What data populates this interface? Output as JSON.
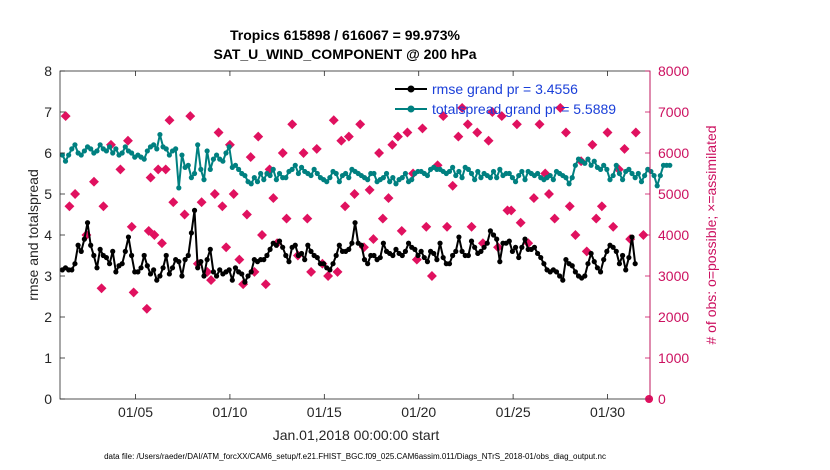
{
  "chart_data": {
    "type": "line",
    "title": "Tropics 615898 / 616067 = 99.973%",
    "subtitle": "SAT_U_WIND_COMPONENT @ 200 hPa",
    "xlabel": "Jan.01,2018 00:00:00 start",
    "ylabel_left": "rmse and totalspread",
    "ylabel_right": "# of obs: o=possible; ×=assimilated",
    "x_tick_labels": [
      "01/05",
      "01/10",
      "01/15",
      "01/20",
      "01/25",
      "01/30"
    ],
    "x_tick_days": [
      5,
      10,
      15,
      20,
      25,
      30
    ],
    "xlim": [
      1,
      32.25
    ],
    "ylim_left": [
      0,
      8
    ],
    "ylim_right": [
      0,
      8000
    ],
    "yticks_left": [
      "0",
      "1",
      "2",
      "3",
      "4",
      "5",
      "6",
      "7",
      "8"
    ],
    "yticks_right": [
      "0",
      "1000",
      "2000",
      "3000",
      "4000",
      "5000",
      "6000",
      "7000",
      "8000"
    ],
    "legend": [
      "rmse grand pr = 3.4556",
      "totalspread grand pr = 5.5889"
    ],
    "footnote": "data file: /Users/raeder/DAI/ATM_forcXX/CAM6_setup/f.e21.FHIST_BGC.f09_025.CAM6assim.011/Diags_NTrS_2018-01/obs_diag_output.nc",
    "colors": {
      "rmse": "#000000",
      "spread": "#008080",
      "obs": "#e0115f",
      "right_axis": "#cc1160"
    },
    "series": [
      {
        "name": "rmse",
        "values": [
          3.15,
          3.2,
          3.15,
          3.15,
          3.3,
          3.75,
          3.6,
          3.9,
          4.3,
          3.75,
          3.5,
          3.2,
          3.65,
          3.5,
          3.45,
          3.3,
          3.6,
          3.1,
          3.25,
          3.3,
          3.6,
          3.95,
          3.5,
          3.1,
          3.1,
          3.2,
          3.5,
          3.25,
          3.05,
          3.15,
          2.9,
          3.0,
          3.2,
          3.5,
          3.05,
          3.2,
          3.4,
          3.35,
          3.0,
          3.4,
          3.5,
          4.05,
          4.6,
          3.2,
          3.35,
          3.0,
          3.4,
          3.65,
          3.1,
          3.0,
          3.15,
          3.05,
          3.1,
          3.15,
          2.9,
          3.2,
          3.1,
          3.05,
          2.85,
          3.0,
          3.1,
          3.4,
          3.35,
          3.4,
          3.4,
          3.5,
          3.65,
          3.8,
          3.75,
          3.85,
          3.7,
          3.5,
          3.35,
          3.7,
          3.75,
          3.5,
          3.55,
          3.4,
          3.75,
          3.6,
          3.5,
          3.45,
          3.3,
          3.3,
          3.2,
          3.15,
          3.3,
          3.5,
          3.75,
          3.6,
          3.6,
          3.65,
          3.8,
          4.3,
          3.8,
          3.75,
          3.4,
          3.3,
          3.5,
          3.5,
          3.4,
          3.45,
          3.8,
          3.6,
          3.55,
          3.5,
          3.65,
          3.55,
          3.5,
          3.6,
          3.8,
          3.7,
          3.65,
          3.5,
          3.6,
          3.45,
          3.35,
          3.6,
          3.55,
          3.4,
          3.8,
          3.45,
          3.3,
          3.3,
          3.5,
          3.6,
          3.95,
          3.6,
          3.5,
          3.5,
          3.85,
          3.7,
          3.55,
          3.6,
          3.7,
          3.8,
          4.1,
          4.0,
          3.9,
          3.35,
          3.8,
          3.8,
          3.85,
          3.6,
          3.7,
          3.45,
          3.7,
          3.9,
          3.65,
          3.65,
          3.7,
          3.55,
          3.45,
          3.3,
          3.15,
          3.1,
          3.15,
          3.1,
          3.0,
          2.9,
          3.4,
          3.3,
          3.25,
          3.1,
          3.0,
          2.95,
          3.0,
          3.3,
          3.55,
          3.35,
          3.2,
          3.1,
          3.4,
          3.6,
          3.75,
          3.7,
          3.6,
          3.3,
          3.5,
          3.15,
          3.45,
          3.95,
          3.3
        ]
      },
      {
        "name": "totalspread",
        "values": [
          5.95,
          5.8,
          5.95,
          6.1,
          6.2,
          6.0,
          5.95,
          6.05,
          6.15,
          6.1,
          6.0,
          6.05,
          6.2,
          6.1,
          6.05,
          6.15,
          6.0,
          6.1,
          5.95,
          6.0,
          6.15,
          6.05,
          6.0,
          5.9,
          5.95,
          5.9,
          5.85,
          6.05,
          6.15,
          6.2,
          6.1,
          6.45,
          6.15,
          6.1,
          5.95,
          6.05,
          6.1,
          5.15,
          5.95,
          5.65,
          5.7,
          5.4,
          5.5,
          6.2,
          5.6,
          5.35,
          6.05,
          5.6,
          5.85,
          5.95,
          5.85,
          5.8,
          6.0,
          6.15,
          5.65,
          5.7,
          5.6,
          5.5,
          5.45,
          5.3,
          5.25,
          5.4,
          5.3,
          5.5,
          5.35,
          5.5,
          5.45,
          5.6,
          5.35,
          5.5,
          5.4,
          5.4,
          5.55,
          5.6,
          5.7,
          5.5,
          5.65,
          5.55,
          5.5,
          5.45,
          5.6,
          5.5,
          5.4,
          5.35,
          5.3,
          5.4,
          5.55,
          5.5,
          5.3,
          5.45,
          5.5,
          5.4,
          5.6,
          5.55,
          5.5,
          5.45,
          5.4,
          5.35,
          5.5,
          5.5,
          5.3,
          5.35,
          5.4,
          5.5,
          5.3,
          5.4,
          5.25,
          5.35,
          5.4,
          5.5,
          5.3,
          5.35,
          5.5,
          5.55,
          5.55,
          5.5,
          5.45,
          5.6,
          5.65,
          5.6,
          5.6,
          5.55,
          5.5,
          5.55,
          5.65,
          5.45,
          5.55,
          5.4,
          5.65,
          5.6,
          5.5,
          5.35,
          5.55,
          5.4,
          5.5,
          5.45,
          5.4,
          5.55,
          5.4,
          5.6,
          5.45,
          5.5,
          5.5,
          5.4,
          5.3,
          5.45,
          5.55,
          5.35,
          5.55,
          5.5,
          5.45,
          5.5,
          5.4,
          5.35,
          5.4,
          5.45,
          5.35,
          5.55,
          5.5,
          5.45,
          5.4,
          5.25,
          5.4,
          5.7,
          5.85,
          5.8,
          5.75,
          5.85,
          5.7,
          5.8,
          5.65,
          5.6,
          5.7,
          5.6,
          5.35,
          5.45,
          5.7,
          5.5,
          5.35,
          5.55,
          5.6,
          5.5,
          5.4,
          5.5,
          5.3,
          5.45,
          5.6,
          5.55,
          5.45,
          5.2,
          5.45,
          5.7,
          5.7,
          5.7
        ]
      },
      {
        "name": "obs_assimilated",
        "points": [
          [
            1.3,
            6900
          ],
          [
            1.5,
            4700
          ],
          [
            1.8,
            5000
          ],
          [
            2.4,
            4000
          ],
          [
            2.8,
            5300
          ],
          [
            3.2,
            2700
          ],
          [
            3.3,
            4700
          ],
          [
            3.7,
            6200
          ],
          [
            4.2,
            5600
          ],
          [
            4.6,
            6300
          ],
          [
            4.8,
            4200
          ],
          [
            4.9,
            2600
          ],
          [
            5.6,
            2200
          ],
          [
            5.7,
            4100
          ],
          [
            5.8,
            5400
          ],
          [
            6.0,
            4000
          ],
          [
            6.2,
            5600
          ],
          [
            6.4,
            3800
          ],
          [
            6.6,
            5600
          ],
          [
            6.8,
            6800
          ],
          [
            7.0,
            4800
          ],
          [
            7.6,
            4500
          ],
          [
            7.9,
            6900
          ],
          [
            8.3,
            3300
          ],
          [
            8.5,
            4800
          ],
          [
            8.8,
            3100
          ],
          [
            9.0,
            2900
          ],
          [
            9.2,
            5000
          ],
          [
            9.4,
            6500
          ],
          [
            9.6,
            4700
          ],
          [
            9.8,
            3700
          ],
          [
            10.0,
            6200
          ],
          [
            10.2,
            5000
          ],
          [
            10.5,
            3400
          ],
          [
            10.7,
            2800
          ],
          [
            10.9,
            4500
          ],
          [
            11.1,
            5900
          ],
          [
            11.3,
            3100
          ],
          [
            11.5,
            6400
          ],
          [
            11.7,
            4000
          ],
          [
            11.9,
            2800
          ],
          [
            12.1,
            5600
          ],
          [
            12.3,
            4900
          ],
          [
            12.5,
            3800
          ],
          [
            12.8,
            6000
          ],
          [
            13.0,
            4400
          ],
          [
            13.3,
            6700
          ],
          [
            13.6,
            3500
          ],
          [
            13.9,
            6000
          ],
          [
            14.1,
            4400
          ],
          [
            14.3,
            3100
          ],
          [
            14.6,
            6100
          ],
          [
            14.9,
            3300
          ],
          [
            15.2,
            3000
          ],
          [
            15.5,
            6800
          ],
          [
            15.7,
            3100
          ],
          [
            15.9,
            6300
          ],
          [
            16.1,
            4700
          ],
          [
            16.3,
            6400
          ],
          [
            16.6,
            5000
          ],
          [
            16.9,
            6700
          ],
          [
            17.1,
            3700
          ],
          [
            17.4,
            5100
          ],
          [
            17.6,
            3900
          ],
          [
            17.9,
            6000
          ],
          [
            18.1,
            4400
          ],
          [
            18.4,
            4900
          ],
          [
            18.6,
            6200
          ],
          [
            18.9,
            6400
          ],
          [
            19.1,
            4100
          ],
          [
            19.4,
            6500
          ],
          [
            19.7,
            5500
          ],
          [
            19.9,
            3400
          ],
          [
            20.2,
            6600
          ],
          [
            20.4,
            4200
          ],
          [
            20.7,
            3000
          ],
          [
            21.0,
            5700
          ],
          [
            21.3,
            6900
          ],
          [
            21.5,
            4200
          ],
          [
            21.8,
            5200
          ],
          [
            22.1,
            6400
          ],
          [
            22.3,
            7100
          ],
          [
            22.6,
            6700
          ],
          [
            22.8,
            4200
          ],
          [
            23.1,
            6500
          ],
          [
            23.4,
            3800
          ],
          [
            23.7,
            6300
          ],
          [
            23.9,
            7000
          ],
          [
            24.2,
            3700
          ],
          [
            24.4,
            6900
          ],
          [
            24.7,
            4600
          ],
          [
            24.9,
            4600
          ],
          [
            25.2,
            6700
          ],
          [
            25.4,
            4300
          ],
          [
            25.8,
            3800
          ],
          [
            26.1,
            4900
          ],
          [
            26.4,
            6700
          ],
          [
            26.7,
            5500
          ],
          [
            26.9,
            5000
          ],
          [
            27.2,
            4400
          ],
          [
            27.5,
            7100
          ],
          [
            27.8,
            6500
          ],
          [
            28.0,
            4700
          ],
          [
            28.3,
            4000
          ],
          [
            28.6,
            5800
          ],
          [
            28.9,
            3600
          ],
          [
            29.2,
            6200
          ],
          [
            29.4,
            4400
          ],
          [
            29.7,
            4700
          ],
          [
            30.0,
            6500
          ],
          [
            30.3,
            4200
          ],
          [
            30.6,
            5600
          ],
          [
            30.9,
            6100
          ],
          [
            31.2,
            3900
          ],
          [
            31.5,
            6500
          ],
          [
            31.9,
            4000
          ]
        ]
      }
    ]
  }
}
